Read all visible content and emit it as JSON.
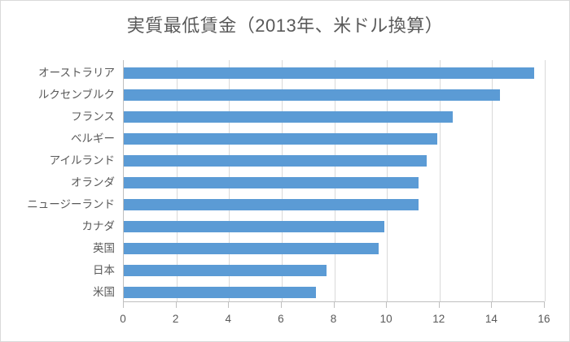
{
  "chart_data": {
    "type": "bar",
    "orientation": "horizontal",
    "title": "実質最低賃金（2013年、米ドル換算）",
    "categories": [
      "オーストラリア",
      "ルクセンブルク",
      "フランス",
      "ベルギー",
      "アイルランド",
      "オランダ",
      "ニュージーランド",
      "カナダ",
      "英国",
      "日本",
      "米国"
    ],
    "values": [
      15.6,
      14.3,
      12.5,
      11.9,
      11.5,
      11.2,
      11.2,
      9.9,
      9.7,
      7.7,
      7.3
    ],
    "xlabel": "",
    "ylabel": "",
    "xlim": [
      0,
      16
    ],
    "xticks": [
      0,
      2,
      4,
      6,
      8,
      10,
      12,
      14,
      16
    ],
    "grid": "vertical",
    "legend": "none",
    "colors": {
      "bar": "#5b9bd5",
      "gridline": "#d9d9d9",
      "axis_line": "#bfbfbf",
      "text": "#595959"
    }
  }
}
